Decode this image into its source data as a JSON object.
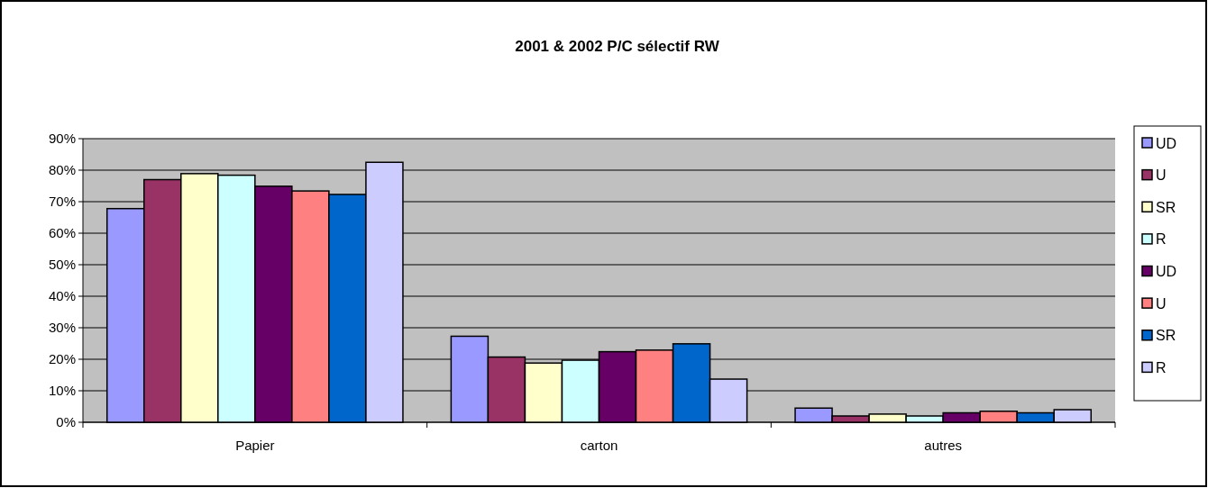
{
  "chart_data": {
    "type": "bar",
    "title": "2001 & 2002 P/C sélectif RW",
    "categories": [
      "Papier",
      "carton",
      "autres"
    ],
    "series": [
      {
        "name": "UD",
        "color": "#9999ff",
        "values": [
          67.8,
          27.3,
          4.5
        ]
      },
      {
        "name": "U",
        "color": "#993366",
        "values": [
          77.0,
          20.7,
          2.0
        ]
      },
      {
        "name": "SR",
        "color": "#ffffcc",
        "values": [
          78.9,
          18.8,
          2.6
        ]
      },
      {
        "name": "R",
        "color": "#ccffff",
        "values": [
          78.4,
          19.7,
          2.0
        ]
      },
      {
        "name": "UD",
        "color": "#660066",
        "values": [
          74.9,
          22.4,
          3.0
        ]
      },
      {
        "name": "U",
        "color": "#ff8080",
        "values": [
          73.4,
          22.9,
          3.5
        ]
      },
      {
        "name": "SR",
        "color": "#0066cc",
        "values": [
          72.3,
          24.9,
          3.0
        ]
      },
      {
        "name": "R",
        "color": "#ccccff",
        "values": [
          82.5,
          13.7,
          4.0
        ]
      }
    ],
    "ylim": [
      0,
      90
    ],
    "yticks": [
      {
        "value": 0,
        "label": "0%"
      },
      {
        "value": 10,
        "label": "10%"
      },
      {
        "value": 20,
        "label": "20%"
      },
      {
        "value": 30,
        "label": "30%"
      },
      {
        "value": 40,
        "label": "40%"
      },
      {
        "value": 50,
        "label": "50%"
      },
      {
        "value": 60,
        "label": "60%"
      },
      {
        "value": 70,
        "label": "70%"
      },
      {
        "value": 80,
        "label": "80%"
      },
      {
        "value": 90,
        "label": "90%"
      }
    ],
    "grid": "y",
    "legend": "right"
  }
}
